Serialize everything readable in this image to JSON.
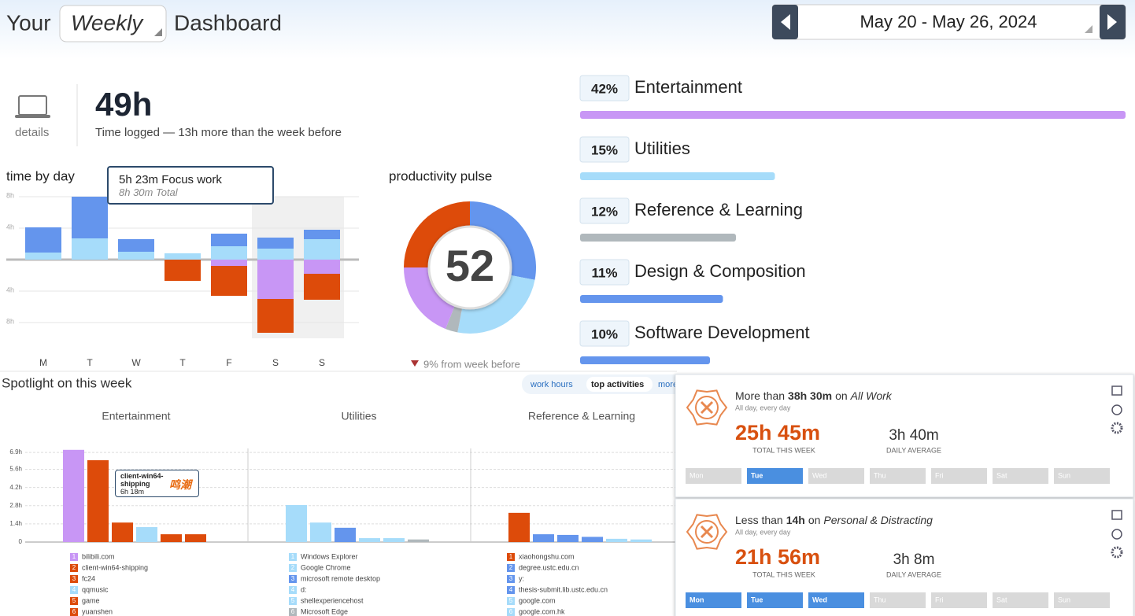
{
  "header": {
    "prefix": "Your",
    "period": "Weekly",
    "suffix": "Dashboard",
    "date_range": "May 20 - May 26, 2024"
  },
  "summary": {
    "link": "details",
    "total": "49h",
    "caption": "Time logged — 13h more than the week before"
  },
  "time_by_day": {
    "type": "bar",
    "stacked": true,
    "title": "time by day",
    "categories": [
      "M",
      "T",
      "W",
      "T",
      "F",
      "S",
      "S"
    ],
    "series": [
      {
        "color": "#a6dcfa",
        "values": [
          0.9,
          2.7,
          1.0,
          0.8,
          1.7,
          1.4,
          2.6
        ]
      },
      {
        "color": "#6495ed",
        "values": [
          3.2,
          5.3,
          1.6,
          0,
          1.6,
          1.4,
          1.2
        ]
      },
      {
        "color": "#c896f5",
        "values": [
          0,
          0,
          0,
          0,
          -0.8,
          -5.0,
          -1.8
        ]
      },
      {
        "color": "#dd4b0a",
        "values": [
          0,
          0,
          0,
          -2.7,
          -3.8,
          -4.3,
          -3.3
        ]
      }
    ],
    "ylim": [
      -10,
      9
    ],
    "yticks": [
      {
        "value": 8,
        "label": "8h"
      },
      {
        "value": 4,
        "label": "4h"
      },
      {
        "value": -4,
        "label": "4h"
      },
      {
        "value": -8,
        "label": "8h"
      }
    ],
    "grid": true,
    "tooltip": {
      "title": "5h 23m Focus work",
      "subtitle": "8h 30m Total"
    }
  },
  "productivity_pulse": {
    "type": "pie",
    "donut": true,
    "title": "productivity pulse",
    "score": 52,
    "change": "9% from week before",
    "values": [
      28,
      25,
      3,
      19,
      25
    ],
    "colors": [
      "#6495ed",
      "#a6dcfa",
      "#b0b8bc",
      "#c896f5",
      "#dd4b0a"
    ]
  },
  "categories": {
    "type": "bar",
    "orientation": "horizontal",
    "names": [
      "Entertainment",
      "Utilities",
      "Reference & Learning",
      "Design & Composition",
      "Software Development"
    ],
    "values": [
      42,
      15,
      12,
      11,
      10
    ],
    "value_labels": [
      "42%",
      "15%",
      "12%",
      "11%",
      "10%"
    ],
    "colors": [
      "#c896f5",
      "#a6dcfa",
      "#b0b8bc",
      "#6495ed",
      "#6495ed"
    ]
  },
  "spotlight": {
    "title": "Spotlight on this week",
    "tabs": [
      "work hours",
      "top activities",
      "more"
    ],
    "active_tab": 1,
    "ylim": [
      0,
      7.3
    ],
    "yticks": [
      0,
      {
        "value": 1.4,
        "label": "1.4h"
      },
      {
        "value": 2.8,
        "label": "2.8h"
      },
      {
        "value": 4.2,
        "label": "4.2h"
      },
      {
        "value": 5.6,
        "label": "5.6h"
      },
      {
        "value": 6.9,
        "label": "6.9h"
      }
    ],
    "panels": [
      {
        "type": "bar",
        "title": "Entertainment",
        "ranks": [
          1,
          2,
          3,
          4,
          5,
          6
        ],
        "categories": [
          "bilibili.com",
          "client-win64-shipping",
          "fc24",
          "qqmusic",
          "game",
          "yuanshen"
        ],
        "values": [
          7.1,
          6.3,
          1.5,
          1.15,
          0.6,
          0.6
        ],
        "colors": [
          "#c896f5",
          "#dd4b0a",
          "#dd4b0a",
          "#a6dcfa",
          "#dd4b0a",
          "#dd4b0a"
        ]
      },
      {
        "type": "bar",
        "title": "Utilities",
        "ranks": [
          1,
          2,
          3,
          4,
          5,
          6
        ],
        "categories": [
          "Windows Explorer",
          "Google Chrome",
          "microsoft remote desktop",
          "d:",
          "shellexperiencehost",
          "Microsoft Edge"
        ],
        "values": [
          2.85,
          1.5,
          1.1,
          0.3,
          0.3,
          0.2
        ],
        "colors": [
          "#a6dcfa",
          "#a6dcfa",
          "#6495ed",
          "#a6dcfa",
          "#a6dcfa",
          "#b0b8bc"
        ]
      },
      {
        "type": "bar",
        "title": "Reference & Learning",
        "ranks": [
          1,
          2,
          3,
          4,
          5,
          6
        ],
        "categories": [
          "xiaohongshu.com",
          "degree.ustc.edu.cn",
          "y:",
          "thesis-submit.lib.ustc.edu.cn",
          "google.com",
          "google.com.hk"
        ],
        "values": [
          2.25,
          0.6,
          0.55,
          0.4,
          0.25,
          0.2
        ],
        "colors": [
          "#dd4b0a",
          "#6495ed",
          "#6495ed",
          "#6495ed",
          "#a6dcfa",
          "#a6dcfa"
        ]
      }
    ],
    "tooltip": {
      "name": "client-win64-shipping",
      "time": "6h 18m",
      "note": "鸣潮"
    }
  },
  "goals": [
    {
      "comparator": "More than",
      "amount": "38h 30m",
      "joiner": "on",
      "target": "All Work",
      "schedule": "All day, every day",
      "total": "25h 45m",
      "total_label": "TOTAL THIS WEEK",
      "average": "3h 40m",
      "average_label": "DAILY AVERAGE",
      "days": [
        "Mon",
        "Tue",
        "Wed",
        "Thu",
        "Fri",
        "Sat",
        "Sun"
      ],
      "met": [
        false,
        true,
        false,
        false,
        false,
        false,
        false
      ]
    },
    {
      "comparator": "Less than",
      "amount": "14h",
      "joiner": "on",
      "target": "Personal & Distracting",
      "schedule": "All day, every day",
      "total": "21h 56m",
      "total_label": "TOTAL THIS WEEK",
      "average": "3h 8m",
      "average_label": "DAILY AVERAGE",
      "days": [
        "Mon",
        "Tue",
        "Wed",
        "Thu",
        "Fri",
        "Sat",
        "Sun"
      ],
      "met": [
        true,
        true,
        true,
        false,
        false,
        false,
        false
      ]
    }
  ]
}
